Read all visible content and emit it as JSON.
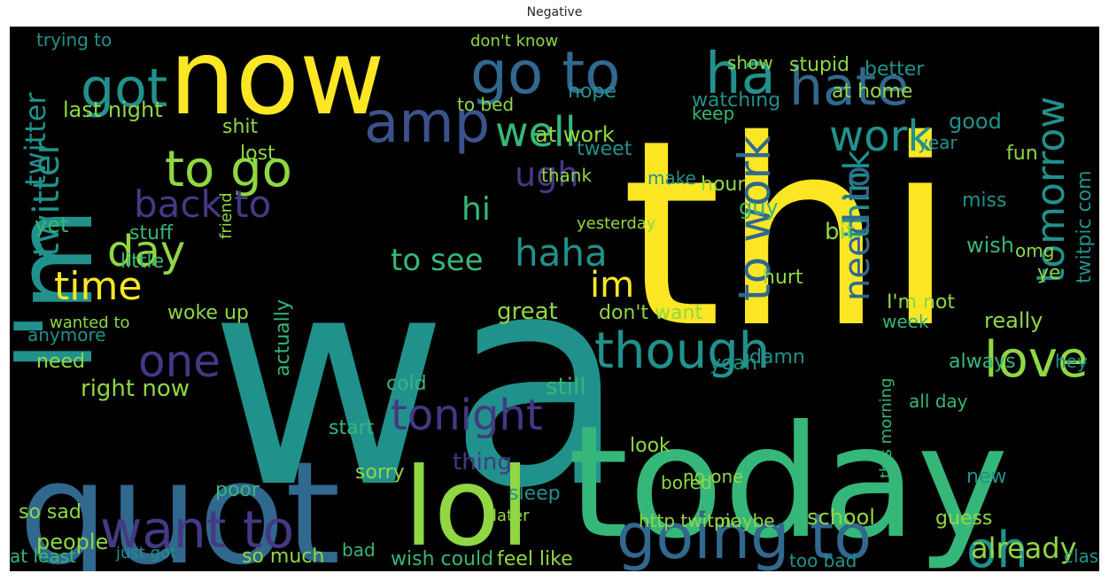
{
  "title": "Negative",
  "palette": {
    "background": "#000000",
    "yellow": "#fde725",
    "teal": "#21918c",
    "green": "#35b779",
    "lime": "#90d743",
    "blue": "#31688e",
    "purple": "#443983",
    "indigo": "#3b528b",
    "lightgreen": "#5ec962"
  },
  "words": [
    {
      "text": "wa",
      "color": "#21918c"
    },
    {
      "text": "thi",
      "color": "#fde725"
    },
    {
      "text": "now",
      "color": "#fde725"
    },
    {
      "text": "today",
      "color": "#35b779"
    },
    {
      "text": "quot",
      "color": "#31688e"
    },
    {
      "text": "I'm",
      "color": "#21918c"
    },
    {
      "text": "lol",
      "color": "#90d743"
    },
    {
      "text": "go to",
      "color": "#31688e"
    },
    {
      "text": "got",
      "color": "#21918c"
    },
    {
      "text": "ha",
      "color": "#21918c"
    },
    {
      "text": "hate",
      "color": "#31688e"
    },
    {
      "text": "amp",
      "color": "#3b528b"
    },
    {
      "text": "to go",
      "color": "#90d743"
    },
    {
      "text": "work",
      "color": "#21918c"
    },
    {
      "text": "well",
      "color": "#35b779"
    },
    {
      "text": "going to",
      "color": "#31688e"
    },
    {
      "text": "want to",
      "color": "#443983"
    },
    {
      "text": "tonight",
      "color": "#443983"
    },
    {
      "text": "though",
      "color": "#21918c"
    },
    {
      "text": "love",
      "color": "#90d743"
    },
    {
      "text": "tomorrow",
      "color": "#21918c"
    },
    {
      "text": "to work",
      "color": "#31688e"
    },
    {
      "text": "day",
      "color": "#90d743"
    },
    {
      "text": "back to",
      "color": "#443983"
    },
    {
      "text": "haha",
      "color": "#21918c"
    },
    {
      "text": "one",
      "color": "#443983"
    },
    {
      "text": "time",
      "color": "#fde725"
    },
    {
      "text": "twitter",
      "color": "#21918c"
    },
    {
      "text": "im",
      "color": "#fde725"
    },
    {
      "text": "to see",
      "color": "#35b779"
    },
    {
      "text": "oh",
      "color": "#21918c"
    },
    {
      "text": "already",
      "color": "#90d743"
    },
    {
      "text": "think",
      "color": "#21918c"
    },
    {
      "text": "need to",
      "color": "#31688e"
    },
    {
      "text": "hi",
      "color": "#35b779"
    },
    {
      "text": "ugh",
      "color": "#443983"
    },
    {
      "text": "right now",
      "color": "#90d743"
    },
    {
      "text": "last night",
      "color": "#90d743"
    },
    {
      "text": "at work",
      "color": "#90d743"
    },
    {
      "text": "thing",
      "color": "#443983"
    },
    {
      "text": "still",
      "color": "#35b779"
    },
    {
      "text": "twitpic com",
      "color": "#21918c"
    },
    {
      "text": "don't want",
      "color": "#90d743"
    },
    {
      "text": "wish",
      "color": "#35b779"
    },
    {
      "text": "people",
      "color": "#90d743"
    },
    {
      "text": "so sad",
      "color": "#90d743"
    },
    {
      "text": "feel like",
      "color": "#90d743"
    },
    {
      "text": "wish could",
      "color": "#35b779"
    },
    {
      "text": "school",
      "color": "#90d743"
    },
    {
      "text": "sorry",
      "color": "#90d743"
    },
    {
      "text": "miss",
      "color": "#21918c"
    },
    {
      "text": "good",
      "color": "#21918c"
    },
    {
      "text": "stupid",
      "color": "#90d743"
    },
    {
      "text": "really",
      "color": "#90d743"
    },
    {
      "text": "at home",
      "color": "#90d743"
    },
    {
      "text": "hope",
      "color": "#21918c"
    },
    {
      "text": "show",
      "color": "#90d743"
    },
    {
      "text": "to bed",
      "color": "#90d743"
    },
    {
      "text": "don't know",
      "color": "#90d743"
    },
    {
      "text": "trying to",
      "color": "#21918c"
    },
    {
      "text": "lost",
      "color": "#90d743"
    },
    {
      "text": "shit",
      "color": "#90d743"
    },
    {
      "text": "bit",
      "color": "#90d743"
    },
    {
      "text": "watching",
      "color": "#21918c"
    },
    {
      "text": "tweet",
      "color": "#21918c"
    },
    {
      "text": "yet",
      "color": "#35b779"
    },
    {
      "text": "hurt",
      "color": "#90d743"
    },
    {
      "text": "guy",
      "color": "#35b779"
    },
    {
      "text": "hour",
      "color": "#90d743"
    },
    {
      "text": "thank",
      "color": "#90d743"
    },
    {
      "text": "yeah",
      "color": "#21918c"
    },
    {
      "text": "damn",
      "color": "#21918c"
    },
    {
      "text": "great",
      "color": "#90d743"
    },
    {
      "text": "I'm not",
      "color": "#90d743"
    },
    {
      "text": "week",
      "color": "#35b779"
    },
    {
      "text": "always",
      "color": "#35b779"
    },
    {
      "text": "cold",
      "color": "#35b779"
    },
    {
      "text": "woke up",
      "color": "#90d743"
    },
    {
      "text": "need",
      "color": "#90d743"
    },
    {
      "text": "stuff",
      "color": "#35b779"
    },
    {
      "text": "little",
      "color": "#35b779"
    },
    {
      "text": "friend",
      "color": "#90d743"
    },
    {
      "text": "actually",
      "color": "#35b779"
    },
    {
      "text": "no one",
      "color": "#90d743"
    },
    {
      "text": "start",
      "color": "#35b779"
    },
    {
      "text": "new",
      "color": "#21918c"
    },
    {
      "text": "guess",
      "color": "#90d743"
    },
    {
      "text": "bored",
      "color": "#90d743"
    },
    {
      "text": "look",
      "color": "#90d743"
    },
    {
      "text": "poor",
      "color": "#35b779"
    },
    {
      "text": "so much",
      "color": "#90d743"
    },
    {
      "text": "just got",
      "color": "#21918c"
    },
    {
      "text": "at least",
      "color": "#35b779"
    },
    {
      "text": "bad",
      "color": "#35b779"
    },
    {
      "text": "http twitpic",
      "color": "#90d743"
    },
    {
      "text": "too bad",
      "color": "#21918c"
    },
    {
      "text": "class",
      "color": "#21918c"
    },
    {
      "text": "make",
      "color": "#21918c"
    },
    {
      "text": "fun",
      "color": "#90d743"
    },
    {
      "text": "year",
      "color": "#21918c"
    },
    {
      "text": "ye",
      "color": "#90d743"
    },
    {
      "text": "omg",
      "color": "#90d743"
    },
    {
      "text": "wanted to",
      "color": "#90d743"
    },
    {
      "text": "anymore",
      "color": "#21918c"
    },
    {
      "text": "yesterday",
      "color": "#90d743"
    },
    {
      "text": "hey",
      "color": "#21918c"
    },
    {
      "text": "this morning",
      "color": "#35b779"
    },
    {
      "text": "later",
      "color": "#90d743"
    },
    {
      "text": "maybe",
      "color": "#90d743"
    },
    {
      "text": "all day",
      "color": "#35b779"
    },
    {
      "text": "sleep",
      "color": "#21918c"
    },
    {
      "text": "keep",
      "color": "#35b779"
    },
    {
      "text": "better",
      "color": "#21918c"
    },
    {
      "text": "twitter",
      "color": "#21918c"
    }
  ]
}
